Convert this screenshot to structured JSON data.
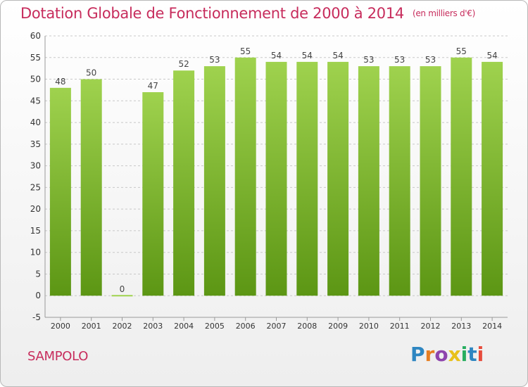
{
  "title": "Dotation Globale de Fonctionnement de 2000 à 2014",
  "unit_note": "(en milliers d'€)",
  "commune": "SAMPOLO",
  "logo": {
    "text": "Proxiti",
    "letters": [
      "P",
      "r",
      "o",
      "x",
      "i",
      "t",
      "i"
    ]
  },
  "colors": {
    "title": "#c72c5c",
    "bar_light": "#9fd24e",
    "bar_dark": "#5c9614",
    "axis_text": "#333333",
    "value_text": "#444444",
    "grid": "#c8c8c8"
  },
  "chart_data": {
    "type": "bar",
    "title": "Dotation Globale de Fonctionnement de 2000 à 2014",
    "subtitle": "(en milliers d'€)",
    "categories": [
      "2000",
      "2001",
      "2002",
      "2003",
      "2004",
      "2005",
      "2006",
      "2007",
      "2008",
      "2009",
      "2010",
      "2011",
      "2012",
      "2013",
      "2014"
    ],
    "values": [
      48,
      50,
      0,
      47,
      52,
      53,
      55,
      54,
      54,
      54,
      53,
      53,
      53,
      55,
      54
    ],
    "ylim": [
      -5,
      60
    ],
    "yticks": [
      -5,
      0,
      5,
      10,
      15,
      20,
      25,
      30,
      35,
      40,
      45,
      50,
      55,
      60
    ],
    "grid": true,
    "grid_style": "dashed-horizontal",
    "xlabel": "",
    "ylabel": ""
  }
}
